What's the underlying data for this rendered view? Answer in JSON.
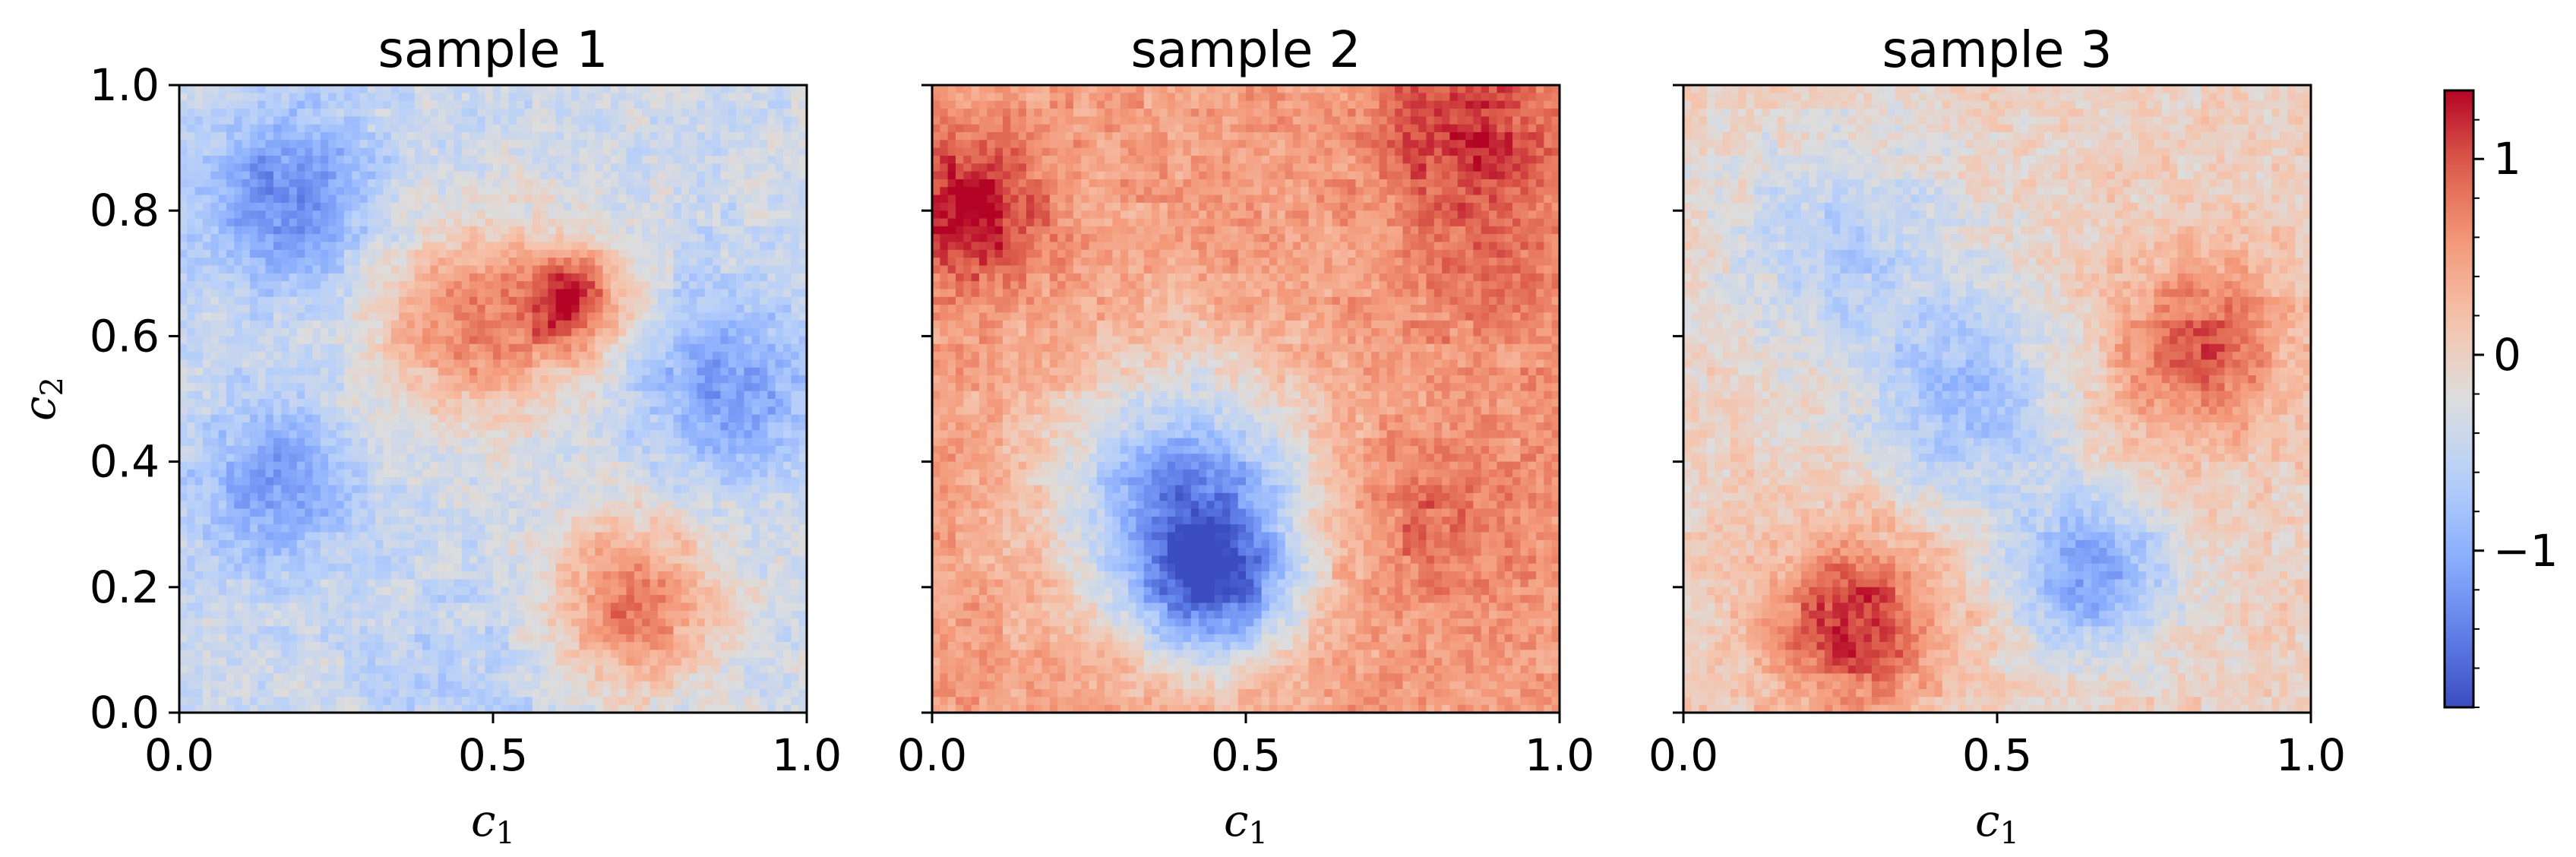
{
  "chart_data": [
    {
      "type": "heatmap",
      "title": "sample 1",
      "xlabel": "c",
      "xlabel_sub": "1",
      "ylabel": "c",
      "ylabel_sub": "2",
      "xlim": [
        0,
        1
      ],
      "ylim": [
        0,
        1
      ],
      "xticks": [
        "0.0",
        "0.5",
        "1.0"
      ],
      "yticks": [
        "0.0",
        "0.2",
        "0.4",
        "0.6",
        "0.8",
        "1.0"
      ],
      "show_yticklabels": true,
      "blobs": [
        {
          "x": 0.17,
          "y": 0.82,
          "value": -1.2,
          "spread": 0.1
        },
        {
          "x": 0.15,
          "y": 0.36,
          "value": -1.0,
          "spread": 0.09
        },
        {
          "x": 0.88,
          "y": 0.52,
          "value": -1.0,
          "spread": 0.1
        },
        {
          "x": 0.47,
          "y": 0.62,
          "value": 0.9,
          "spread": 0.11
        },
        {
          "x": 0.63,
          "y": 0.66,
          "value": 1.1,
          "spread": 0.06
        },
        {
          "x": 0.72,
          "y": 0.17,
          "value": 1.0,
          "spread": 0.1
        },
        {
          "x": 0.5,
          "y": 0.05,
          "value": -0.5,
          "spread": 0.12
        }
      ],
      "base_value": -0.4
    },
    {
      "type": "heatmap",
      "title": "sample 2",
      "xlabel": "c",
      "xlabel_sub": "1",
      "xlim": [
        0,
        1
      ],
      "ylim": [
        0,
        1
      ],
      "xticks": [
        "0.0",
        "0.5",
        "1.0"
      ],
      "yticks": [
        "0.0",
        "0.2",
        "0.4",
        "0.6",
        "0.8",
        "1.0"
      ],
      "show_yticklabels": false,
      "blobs": [
        {
          "x": 0.4,
          "y": 0.35,
          "value": -1.4,
          "spread": 0.14
        },
        {
          "x": 0.45,
          "y": 0.2,
          "value": -1.2,
          "spread": 0.09
        },
        {
          "x": 0.06,
          "y": 0.8,
          "value": 1.2,
          "spread": 0.08
        },
        {
          "x": 0.85,
          "y": 0.93,
          "value": 1.0,
          "spread": 0.1
        },
        {
          "x": 0.8,
          "y": 0.3,
          "value": 0.7,
          "spread": 0.1
        },
        {
          "x": 0.9,
          "y": 0.7,
          "value": 0.6,
          "spread": 0.1
        }
      ],
      "base_value": 0.5
    },
    {
      "type": "heatmap",
      "title": "sample 3",
      "xlabel": "c",
      "xlabel_sub": "1",
      "xlim": [
        0,
        1
      ],
      "ylim": [
        0,
        1
      ],
      "xticks": [
        "0.0",
        "0.5",
        "1.0"
      ],
      "yticks": [
        "0.0",
        "0.2",
        "0.4",
        "0.6",
        "0.8",
        "1.0"
      ],
      "show_yticklabels": false,
      "blobs": [
        {
          "x": 0.27,
          "y": 0.14,
          "value": 1.2,
          "spread": 0.1
        },
        {
          "x": 0.82,
          "y": 0.58,
          "value": 1.0,
          "spread": 0.1
        },
        {
          "x": 0.65,
          "y": 0.22,
          "value": -1.1,
          "spread": 0.09
        },
        {
          "x": 0.45,
          "y": 0.5,
          "value": -0.8,
          "spread": 0.12
        },
        {
          "x": 0.25,
          "y": 0.75,
          "value": -0.6,
          "spread": 0.13
        }
      ],
      "base_value": 0.0
    }
  ],
  "colorbar": {
    "colormap": "coolwarm",
    "min": -1.8,
    "max": 1.35,
    "ticks": [
      {
        "value": 1,
        "label": "1"
      },
      {
        "value": 0,
        "label": "0"
      },
      {
        "value": -1,
        "label": "−1"
      }
    ],
    "minor_step": 0.2
  },
  "colors": {
    "cold": "#3b4cc0",
    "neutral": "#dddddd",
    "warm": "#b40426"
  }
}
